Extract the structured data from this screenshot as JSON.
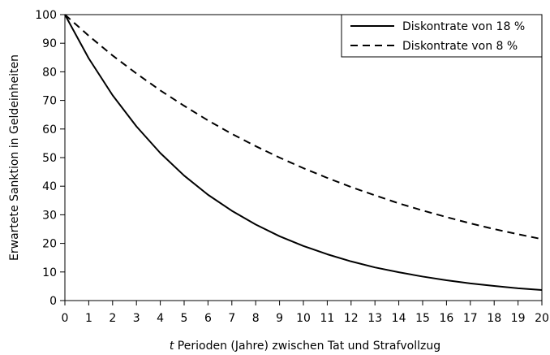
{
  "chart_data": {
    "type": "line",
    "title": "",
    "xlabel_prefix": "t",
    "xlabel_rest": " Perioden (Jahre) zwischen Tat und Strafvollzug",
    "ylabel": "Erwartete Sanktion in Geldeinheiten",
    "xlim": [
      0,
      20
    ],
    "ylim": [
      0,
      100
    ],
    "x": [
      0,
      1,
      2,
      3,
      4,
      5,
      6,
      7,
      8,
      9,
      10,
      11,
      12,
      13,
      14,
      15,
      16,
      17,
      18,
      19,
      20
    ],
    "xticks": [
      "0",
      "1",
      "2",
      "3",
      "4",
      "5",
      "6",
      "7",
      "8",
      "9",
      "10",
      "11",
      "12",
      "13",
      "14",
      "15",
      "16",
      "17",
      "18",
      "19",
      "20"
    ],
    "yticks": [
      "0",
      "10",
      "20",
      "30",
      "40",
      "50",
      "60",
      "70",
      "80",
      "90",
      "100"
    ],
    "grid": false,
    "legend_position": "top-right",
    "series": [
      {
        "name": "Diskontrate von 18 %",
        "style": "solid",
        "values": [
          100,
          84.7,
          71.8,
          60.9,
          51.6,
          43.7,
          37.0,
          31.4,
          26.6,
          22.5,
          19.1,
          16.2,
          13.7,
          11.6,
          9.9,
          8.4,
          7.1,
          6.0,
          5.1,
          4.3,
          3.7
        ]
      },
      {
        "name": "Diskontrate von 8 %",
        "style": "dashed",
        "values": [
          100,
          92.6,
          85.7,
          79.4,
          73.5,
          68.1,
          63.0,
          58.3,
          54.0,
          50.0,
          46.3,
          42.9,
          39.7,
          36.8,
          34.0,
          31.5,
          29.2,
          27.0,
          25.0,
          23.2,
          21.5
        ]
      }
    ]
  }
}
